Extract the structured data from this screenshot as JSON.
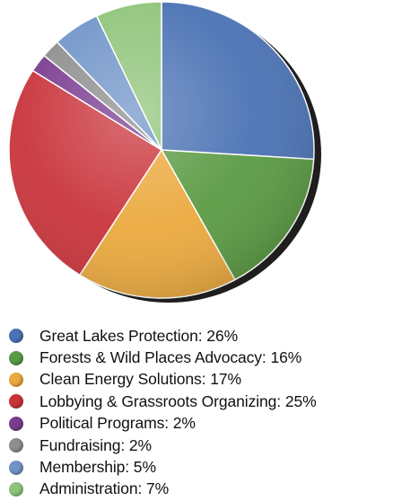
{
  "chart_data": {
    "type": "pie",
    "title": "",
    "legend_position": "bottom",
    "slices": [
      {
        "label": "Great Lakes Protection: 26%",
        "value": 26,
        "color": "#4a72b4"
      },
      {
        "label": "Forests & Wild Places Advocacy: 16%",
        "value": 16,
        "color": "#5a9a43"
      },
      {
        "label": "Clean Energy Solutions: 17%",
        "value": 17,
        "color": "#eba93e"
      },
      {
        "label": "Lobbying & Grassroots Organizing: 25%",
        "value": 25,
        "color": "#c9343b"
      },
      {
        "label": "Political Programs: 2%",
        "value": 2,
        "color": "#7a3c8f"
      },
      {
        "label": "Fundraising: 2%",
        "value": 2,
        "color": "#8e8e8e"
      },
      {
        "label": "Membership: 5%",
        "value": 5,
        "color": "#7094c8"
      },
      {
        "label": "Administration: 7%",
        "value": 7,
        "color": "#8fc47a"
      }
    ]
  }
}
